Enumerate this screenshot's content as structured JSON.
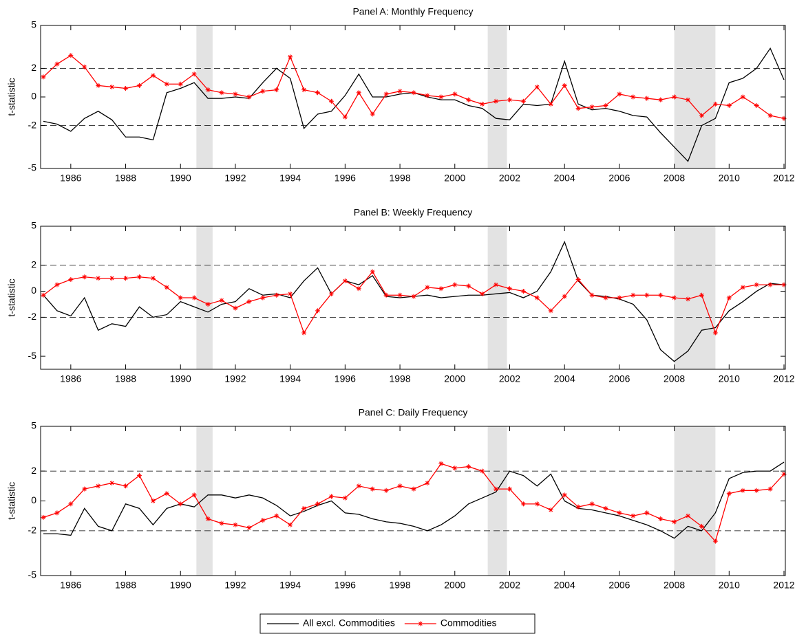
{
  "chart_data": [
    {
      "type": "line",
      "title": "Panel A: Monthly Frequency",
      "y_label": "t-statistic",
      "x": [
        1985,
        1985.5,
        1986,
        1986.5,
        1987,
        1987.5,
        1988,
        1988.5,
        1989,
        1989.5,
        1990,
        1990.5,
        1991,
        1991.5,
        1992,
        1992.5,
        1993,
        1993.5,
        1994,
        1994.5,
        1995,
        1995.5,
        1996,
        1996.5,
        1997,
        1997.5,
        1998,
        1998.5,
        1999,
        1999.5,
        2000,
        2000.5,
        2001,
        2001.5,
        2002,
        2002.5,
        2003,
        2003.5,
        2004,
        2004.5,
        2005,
        2005.5,
        2006,
        2006.5,
        2007,
        2007.5,
        2008,
        2008.5,
        2009,
        2009.5,
        2010,
        2010.5,
        2011,
        2011.5,
        2012
      ],
      "xlim": [
        1984.9,
        2012.05
      ],
      "xticks": [
        1986,
        1988,
        1990,
        1992,
        1994,
        1996,
        1998,
        2000,
        2002,
        2004,
        2006,
        2008,
        2010,
        2012
      ],
      "ylim": [
        -5,
        5
      ],
      "yticks": [
        -5,
        -2,
        0,
        2,
        5
      ],
      "hlines": [
        2,
        -2
      ],
      "shaded": [
        [
          1990.58,
          1991.17
        ],
        [
          2001.2,
          2001.9
        ],
        [
          2008.0,
          2009.5
        ]
      ],
      "series": [
        {
          "name": "All excl. Commodities",
          "color": "#000000",
          "marker": "none",
          "values": [
            -1.7,
            -1.9,
            -2.4,
            -1.5,
            -1.0,
            -1.6,
            -2.8,
            -2.8,
            -3.0,
            0.3,
            0.6,
            1.0,
            -0.1,
            -0.1,
            0.0,
            -0.1,
            1.0,
            2.0,
            1.3,
            -2.2,
            -1.2,
            -1.0,
            0.1,
            1.6,
            0.0,
            0.0,
            0.2,
            0.3,
            0.0,
            -0.2,
            -0.2,
            -0.6,
            -0.8,
            -1.5,
            -1.6,
            -0.5,
            -0.6,
            -0.5,
            2.5,
            -0.5,
            -0.9,
            -0.8,
            -1.0,
            -1.3,
            -1.4,
            -2.5,
            -3.5,
            -4.5,
            -2.0,
            -1.5,
            1.0,
            1.3,
            2.0,
            3.4,
            1.2
          ]
        },
        {
          "name": "Commodities",
          "color": "#ff0000",
          "marker": "star",
          "values": [
            1.4,
            2.3,
            2.9,
            2.1,
            0.8,
            0.7,
            0.6,
            0.8,
            1.5,
            0.9,
            0.9,
            1.6,
            0.5,
            0.3,
            0.2,
            0.0,
            0.4,
            0.5,
            2.8,
            0.5,
            0.3,
            -0.3,
            -1.4,
            0.3,
            -1.2,
            0.2,
            0.4,
            0.3,
            0.1,
            0.0,
            0.2,
            -0.2,
            -0.5,
            -0.3,
            -0.2,
            -0.3,
            0.7,
            -0.5,
            0.8,
            -0.8,
            -0.7,
            -0.6,
            0.2,
            0.0,
            -0.1,
            -0.2,
            0.0,
            -0.2,
            -1.3,
            -0.5,
            -0.6,
            0.0,
            -0.6,
            -1.3,
            -1.5
          ]
        }
      ]
    },
    {
      "type": "line",
      "title": "Panel B: Weekly Frequency",
      "y_label": "t-statistic",
      "x": [
        1985,
        1985.5,
        1986,
        1986.5,
        1987,
        1987.5,
        1988,
        1988.5,
        1989,
        1989.5,
        1990,
        1990.5,
        1991,
        1991.5,
        1992,
        1992.5,
        1993,
        1993.5,
        1994,
        1994.5,
        1995,
        1995.5,
        1996,
        1996.5,
        1997,
        1997.5,
        1998,
        1998.5,
        1999,
        1999.5,
        2000,
        2000.5,
        2001,
        2001.5,
        2002,
        2002.5,
        2003,
        2003.5,
        2004,
        2004.5,
        2005,
        2005.5,
        2006,
        2006.5,
        2007,
        2007.5,
        2008,
        2008.5,
        2009,
        2009.5,
        2010,
        2010.5,
        2011,
        2011.5,
        2012
      ],
      "xlim": [
        1984.9,
        2012.05
      ],
      "xticks": [
        1986,
        1988,
        1990,
        1992,
        1994,
        1996,
        1998,
        2000,
        2002,
        2004,
        2006,
        2008,
        2010,
        2012
      ],
      "ylim": [
        -6,
        5
      ],
      "yticks": [
        -5,
        -2,
        0,
        2,
        5
      ],
      "hlines": [
        2,
        -2
      ],
      "shaded": [
        [
          1990.58,
          1991.17
        ],
        [
          2001.2,
          2001.9
        ],
        [
          2008.0,
          2009.5
        ]
      ],
      "series": [
        {
          "color": "#000000",
          "marker": "none",
          "values": [
            -0.3,
            -1.5,
            -1.9,
            -0.5,
            -3.0,
            -2.5,
            -2.7,
            -1.2,
            -2.0,
            -1.8,
            -0.8,
            -1.2,
            -1.6,
            -1.0,
            -0.8,
            0.2,
            -0.3,
            -0.2,
            -0.5,
            0.8,
            1.8,
            -0.2,
            0.8,
            0.5,
            1.2,
            -0.4,
            -0.5,
            -0.4,
            -0.3,
            -0.5,
            -0.4,
            -0.3,
            -0.3,
            -0.2,
            -0.1,
            -0.5,
            0.0,
            1.5,
            3.8,
            0.8,
            -0.3,
            -0.4,
            -0.6,
            -1.0,
            -2.2,
            -4.5,
            -5.4,
            -4.6,
            -3.0,
            -2.8,
            -1.5,
            -0.8,
            0.0,
            0.6,
            0.5
          ]
        },
        {
          "color": "#ff0000",
          "marker": "star",
          "values": [
            -0.3,
            0.5,
            0.9,
            1.1,
            1.0,
            1.0,
            1.0,
            1.1,
            1.0,
            0.3,
            -0.5,
            -0.5,
            -1.0,
            -0.7,
            -1.3,
            -0.8,
            -0.5,
            -0.3,
            -0.2,
            -3.2,
            -1.5,
            -0.2,
            0.8,
            0.2,
            1.5,
            -0.3,
            -0.3,
            -0.4,
            0.3,
            0.2,
            0.5,
            0.4,
            -0.2,
            0.5,
            0.2,
            0.0,
            -0.5,
            -1.5,
            -0.4,
            0.9,
            -0.3,
            -0.5,
            -0.5,
            -0.3,
            -0.3,
            -0.3,
            -0.5,
            -0.6,
            -0.3,
            -3.2,
            -0.5,
            0.3,
            0.5,
            0.5,
            0.5
          ]
        }
      ]
    },
    {
      "type": "line",
      "title": "Panel C: Daily Frequency",
      "y_label": "t-statistic",
      "x": [
        1985,
        1985.5,
        1986,
        1986.5,
        1987,
        1987.5,
        1988,
        1988.5,
        1989,
        1989.5,
        1990,
        1990.5,
        1991,
        1991.5,
        1992,
        1992.5,
        1993,
        1993.5,
        1994,
        1994.5,
        1995,
        1995.5,
        1996,
        1996.5,
        1997,
        1997.5,
        1998,
        1998.5,
        1999,
        1999.5,
        2000,
        2000.5,
        2001,
        2001.5,
        2002,
        2002.5,
        2003,
        2003.5,
        2004,
        2004.5,
        2005,
        2005.5,
        2006,
        2006.5,
        2007,
        2007.5,
        2008,
        2008.5,
        2009,
        2009.5,
        2010,
        2010.5,
        2011,
        2011.5,
        2012
      ],
      "xlim": [
        1984.9,
        2012.05
      ],
      "xticks": [
        1986,
        1988,
        1990,
        1992,
        1994,
        1996,
        1998,
        2000,
        2002,
        2004,
        2006,
        2008,
        2010,
        2012
      ],
      "ylim": [
        -5,
        5
      ],
      "yticks": [
        -5,
        -2,
        0,
        2,
        5
      ],
      "hlines": [
        2,
        -2
      ],
      "shaded": [
        [
          1990.58,
          1991.17
        ],
        [
          2001.2,
          2001.9
        ],
        [
          2008.0,
          2009.5
        ]
      ],
      "series": [
        {
          "color": "#000000",
          "marker": "none",
          "values": [
            -2.2,
            -2.2,
            -2.3,
            -0.5,
            -1.7,
            -2.0,
            -0.2,
            -0.5,
            -1.6,
            -0.5,
            -0.2,
            -0.4,
            0.4,
            0.4,
            0.2,
            0.4,
            0.2,
            -0.3,
            -1.0,
            -0.7,
            -0.3,
            0.0,
            -0.8,
            -0.9,
            -1.2,
            -1.4,
            -1.5,
            -1.7,
            -2.0,
            -1.6,
            -1.0,
            -0.2,
            0.2,
            0.6,
            2.0,
            1.7,
            1.0,
            1.8,
            0.0,
            -0.5,
            -0.6,
            -0.8,
            -1.0,
            -1.3,
            -1.6,
            -2.0,
            -2.5,
            -1.7,
            -2.0,
            -0.8,
            1.5,
            1.9,
            2.0,
            2.0,
            2.6
          ]
        },
        {
          "color": "#ff0000",
          "marker": "star",
          "values": [
            -1.1,
            -0.8,
            -0.2,
            0.8,
            1.0,
            1.2,
            1.0,
            1.7,
            0.0,
            0.5,
            -0.2,
            0.4,
            -1.2,
            -1.5,
            -1.6,
            -1.8,
            -1.3,
            -1.0,
            -1.6,
            -0.5,
            -0.2,
            0.3,
            0.2,
            1.0,
            0.8,
            0.7,
            1.0,
            0.8,
            1.2,
            2.5,
            2.2,
            2.3,
            2.0,
            0.8,
            0.8,
            -0.2,
            -0.2,
            -0.6,
            0.4,
            -0.4,
            -0.2,
            -0.5,
            -0.8,
            -1.0,
            -0.8,
            -1.2,
            -1.4,
            -1.0,
            -1.7,
            -2.7,
            0.5,
            0.7,
            0.7,
            0.8,
            1.8
          ]
        }
      ]
    }
  ]
}
